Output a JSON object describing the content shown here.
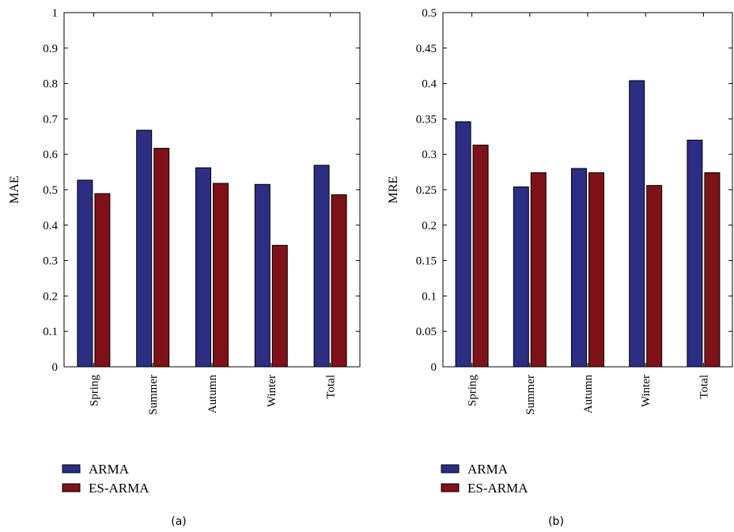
{
  "colors": {
    "ARMA": "#2b2e82",
    "ES-ARMA": "#7f1118"
  },
  "chart_data": [
    {
      "type": "bar",
      "panel_label": "(a)",
      "categories": [
        "Spring",
        "Summer",
        "Autumn",
        "Winter",
        "Total"
      ],
      "series": [
        {
          "name": "ARMA",
          "values": [
            0.527,
            0.668,
            0.562,
            0.515,
            0.569
          ]
        },
        {
          "name": "ES-ARMA",
          "values": [
            0.489,
            0.617,
            0.518,
            0.343,
            0.486
          ]
        }
      ],
      "ylabel": "MAE",
      "ylim": [
        0,
        1
      ],
      "yticks": [
        "0",
        "0.1",
        "0.2",
        "0.3",
        "0.4",
        "0.5",
        "0.6",
        "0.7",
        "0.8",
        "0.9",
        "1"
      ],
      "legend_position": "bottom-left",
      "grid": false
    },
    {
      "type": "bar",
      "panel_label": "(b)",
      "categories": [
        "Spring",
        "Summer",
        "Autumn",
        "Winter",
        "Total"
      ],
      "series": [
        {
          "name": "ARMA",
          "values": [
            0.346,
            0.254,
            0.28,
            0.404,
            0.32
          ]
        },
        {
          "name": "ES-ARMA",
          "values": [
            0.313,
            0.274,
            0.274,
            0.256,
            0.274
          ]
        }
      ],
      "ylabel": "MRE",
      "ylim": [
        0,
        0.5
      ],
      "yticks": [
        "0",
        "0.05",
        "0.1",
        "0.15",
        "0.2",
        "0.25",
        "0.3",
        "0.35",
        "0.4",
        "0.45",
        "0.5"
      ],
      "legend_position": "bottom-left",
      "grid": false
    }
  ]
}
